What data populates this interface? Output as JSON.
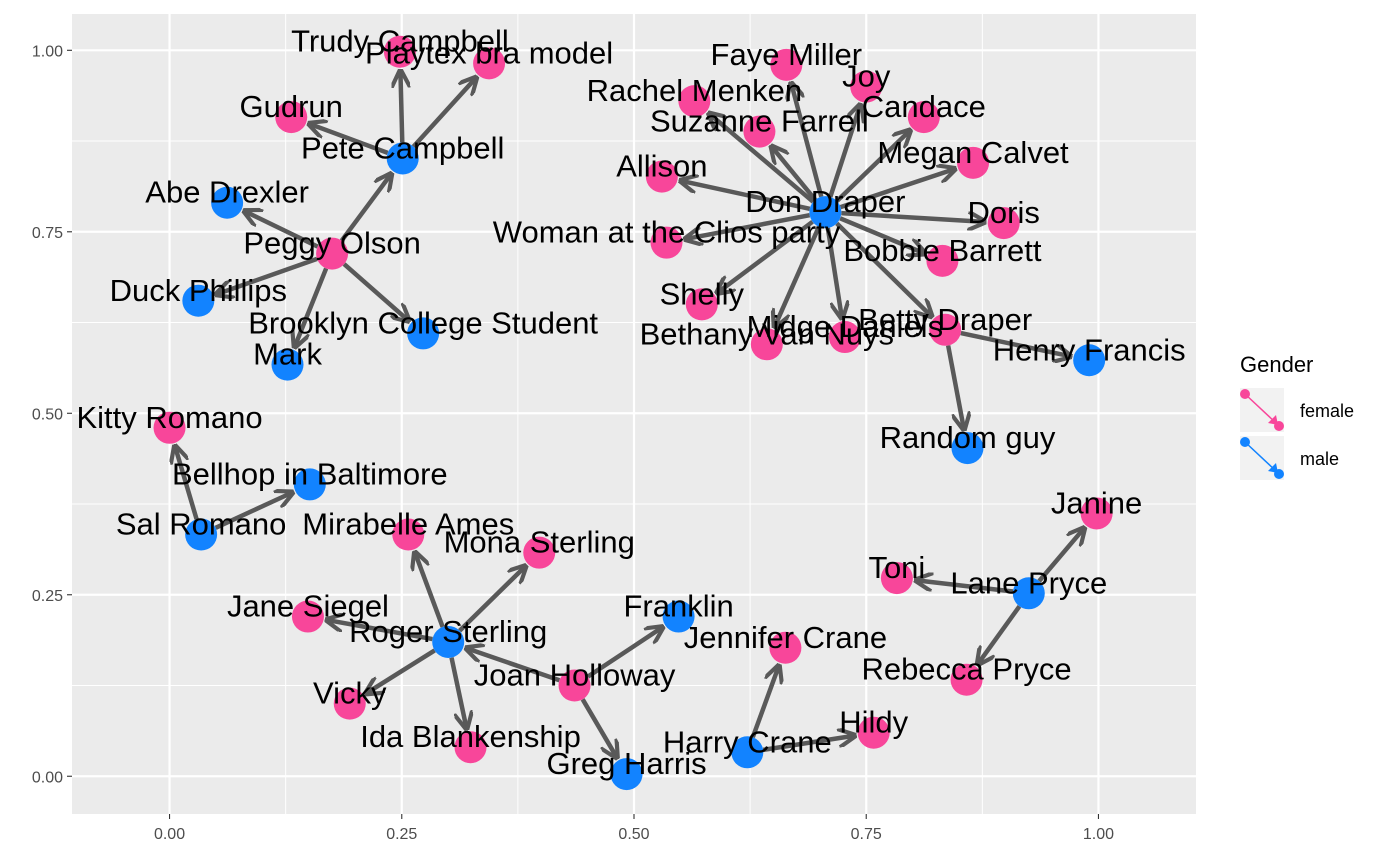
{
  "chart_data": {
    "type": "network",
    "xlim": [
      -0.105,
      1.105
    ],
    "ylim": [
      -0.052,
      1.05
    ],
    "x_ticks": [
      {
        "value": 0,
        "label": "0.00"
      },
      {
        "value": 0.25,
        "label": "0.25"
      },
      {
        "value": 0.5,
        "label": "0.50"
      },
      {
        "value": 0.75,
        "label": "0.75"
      },
      {
        "value": 1,
        "label": "1.00"
      }
    ],
    "y_ticks": [
      {
        "value": 0,
        "label": "0.00"
      },
      {
        "value": 0.25,
        "label": "0.25"
      },
      {
        "value": 0.5,
        "label": "0.50"
      },
      {
        "value": 0.75,
        "label": "0.75"
      },
      {
        "value": 1,
        "label": "1.00"
      }
    ],
    "grid": true,
    "legend": {
      "title": "Gender",
      "placement": "right",
      "entries": [
        {
          "label": "female",
          "color": "#F8469A"
        },
        {
          "label": "male",
          "color": "#1283FF"
        }
      ]
    },
    "edge_color": "#595959",
    "nodes": [
      {
        "id": "Don Draper",
        "x": 0.706,
        "y": 0.777,
        "gender": "male"
      },
      {
        "id": "Rachel Menken",
        "x": 0.565,
        "y": 0.93,
        "gender": "female"
      },
      {
        "id": "Faye Miller",
        "x": 0.664,
        "y": 0.98,
        "gender": "female"
      },
      {
        "id": "Joy",
        "x": 0.75,
        "y": 0.95,
        "gender": "female"
      },
      {
        "id": "Candace",
        "x": 0.812,
        "y": 0.908,
        "gender": "female"
      },
      {
        "id": "Suzanne Farrell",
        "x": 0.635,
        "y": 0.888,
        "gender": "female"
      },
      {
        "id": "Megan Calvet",
        "x": 0.865,
        "y": 0.845,
        "gender": "female"
      },
      {
        "id": "Allison",
        "x": 0.53,
        "y": 0.826,
        "gender": "female"
      },
      {
        "id": "Doris",
        "x": 0.898,
        "y": 0.762,
        "gender": "female"
      },
      {
        "id": "Woman at the Clios party",
        "x": 0.535,
        "y": 0.735,
        "gender": "female"
      },
      {
        "id": "Bobbie Barrett",
        "x": 0.832,
        "y": 0.71,
        "gender": "female"
      },
      {
        "id": "Shelly",
        "x": 0.573,
        "y": 0.65,
        "gender": "female"
      },
      {
        "id": "Betty Draper",
        "x": 0.835,
        "y": 0.615,
        "gender": "female"
      },
      {
        "id": "Midge Daniels",
        "x": 0.727,
        "y": 0.605,
        "gender": "female"
      },
      {
        "id": "Bethany Van Nuys",
        "x": 0.643,
        "y": 0.595,
        "gender": "female"
      },
      {
        "id": "Henry Francis",
        "x": 0.99,
        "y": 0.573,
        "gender": "male"
      },
      {
        "id": "Random guy",
        "x": 0.859,
        "y": 0.452,
        "gender": "male"
      },
      {
        "id": "Trudy Campbell",
        "x": 0.248,
        "y": 0.998,
        "gender": "female"
      },
      {
        "id": "Playtex bra model",
        "x": 0.344,
        "y": 0.982,
        "gender": "female"
      },
      {
        "id": "Gudrun",
        "x": 0.131,
        "y": 0.908,
        "gender": "female"
      },
      {
        "id": "Pete Campbell",
        "x": 0.251,
        "y": 0.851,
        "gender": "male"
      },
      {
        "id": "Abe Drexler",
        "x": 0.062,
        "y": 0.79,
        "gender": "male"
      },
      {
        "id": "Peggy Olson",
        "x": 0.175,
        "y": 0.72,
        "gender": "female"
      },
      {
        "id": "Duck Phillips",
        "x": 0.031,
        "y": 0.655,
        "gender": "male"
      },
      {
        "id": "Brooklyn College Student",
        "x": 0.273,
        "y": 0.61,
        "gender": "male"
      },
      {
        "id": "Mark",
        "x": 0.127,
        "y": 0.567,
        "gender": "male"
      },
      {
        "id": "Kitty Romano",
        "x": 0.0,
        "y": 0.48,
        "gender": "female"
      },
      {
        "id": "Bellhop in Baltimore",
        "x": 0.151,
        "y": 0.402,
        "gender": "male"
      },
      {
        "id": "Sal Romano",
        "x": 0.034,
        "y": 0.333,
        "gender": "male"
      },
      {
        "id": "Mirabelle Ames",
        "x": 0.257,
        "y": 0.333,
        "gender": "female"
      },
      {
        "id": "Mona Sterling",
        "x": 0.398,
        "y": 0.308,
        "gender": "female"
      },
      {
        "id": "Jane Siegel",
        "x": 0.149,
        "y": 0.22,
        "gender": "female"
      },
      {
        "id": "Roger Sterling",
        "x": 0.3,
        "y": 0.185,
        "gender": "male"
      },
      {
        "id": "Franklin",
        "x": 0.548,
        "y": 0.22,
        "gender": "male"
      },
      {
        "id": "Jennifer Crane",
        "x": 0.663,
        "y": 0.177,
        "gender": "female"
      },
      {
        "id": "Joan Holloway",
        "x": 0.436,
        "y": 0.125,
        "gender": "female"
      },
      {
        "id": "Vicky",
        "x": 0.194,
        "y": 0.1,
        "gender": "female"
      },
      {
        "id": "Ida Blankenship",
        "x": 0.324,
        "y": 0.04,
        "gender": "female"
      },
      {
        "id": "Harry Crane",
        "x": 0.622,
        "y": 0.033,
        "gender": "male"
      },
      {
        "id": "Hildy",
        "x": 0.758,
        "y": 0.06,
        "gender": "female"
      },
      {
        "id": "Greg Harris",
        "x": 0.492,
        "y": 0.003,
        "gender": "male"
      },
      {
        "id": "Janine",
        "x": 0.998,
        "y": 0.362,
        "gender": "female"
      },
      {
        "id": "Toni",
        "x": 0.783,
        "y": 0.273,
        "gender": "female"
      },
      {
        "id": "Lane Pryce",
        "x": 0.925,
        "y": 0.252,
        "gender": "male"
      },
      {
        "id": "Rebecca Pryce",
        "x": 0.858,
        "y": 0.133,
        "gender": "female"
      }
    ],
    "edges": [
      [
        "Don Draper",
        "Rachel Menken"
      ],
      [
        "Don Draper",
        "Faye Miller"
      ],
      [
        "Don Draper",
        "Joy"
      ],
      [
        "Don Draper",
        "Candace"
      ],
      [
        "Don Draper",
        "Suzanne Farrell"
      ],
      [
        "Don Draper",
        "Megan Calvet"
      ],
      [
        "Don Draper",
        "Allison"
      ],
      [
        "Don Draper",
        "Doris"
      ],
      [
        "Don Draper",
        "Woman at the Clios party"
      ],
      [
        "Don Draper",
        "Bobbie Barrett"
      ],
      [
        "Don Draper",
        "Shelly"
      ],
      [
        "Don Draper",
        "Betty Draper"
      ],
      [
        "Don Draper",
        "Midge Daniels"
      ],
      [
        "Don Draper",
        "Bethany Van Nuys"
      ],
      [
        "Betty Draper",
        "Henry Francis"
      ],
      [
        "Betty Draper",
        "Random guy"
      ],
      [
        "Pete Campbell",
        "Trudy Campbell"
      ],
      [
        "Pete Campbell",
        "Playtex bra model"
      ],
      [
        "Pete Campbell",
        "Gudrun"
      ],
      [
        "Peggy Olson",
        "Pete Campbell"
      ],
      [
        "Peggy Olson",
        "Abe Drexler"
      ],
      [
        "Peggy Olson",
        "Duck Phillips"
      ],
      [
        "Peggy Olson",
        "Brooklyn College Student"
      ],
      [
        "Peggy Olson",
        "Mark"
      ],
      [
        "Sal Romano",
        "Kitty Romano"
      ],
      [
        "Sal Romano",
        "Bellhop in Baltimore"
      ],
      [
        "Roger Sterling",
        "Mirabelle Ames"
      ],
      [
        "Roger Sterling",
        "Mona Sterling"
      ],
      [
        "Roger Sterling",
        "Jane Siegel"
      ],
      [
        "Roger Sterling",
        "Vicky"
      ],
      [
        "Roger Sterling",
        "Ida Blankenship"
      ],
      [
        "Joan Holloway",
        "Roger Sterling"
      ],
      [
        "Joan Holloway",
        "Franklin"
      ],
      [
        "Joan Holloway",
        "Greg Harris"
      ],
      [
        "Harry Crane",
        "Jennifer Crane"
      ],
      [
        "Harry Crane",
        "Hildy"
      ],
      [
        "Lane Pryce",
        "Janine"
      ],
      [
        "Lane Pryce",
        "Toni"
      ],
      [
        "Lane Pryce",
        "Rebecca Pryce"
      ]
    ]
  }
}
